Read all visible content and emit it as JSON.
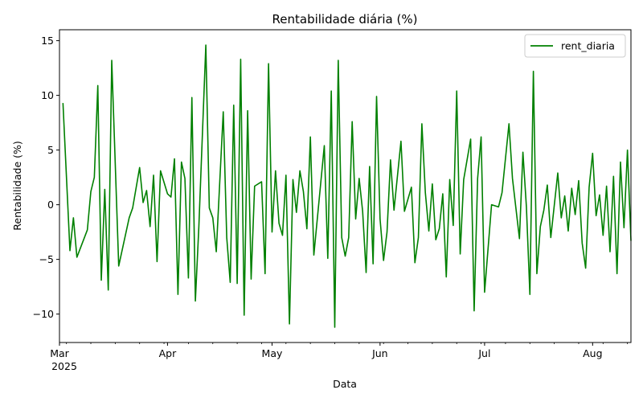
{
  "chart_data": {
    "type": "line",
    "title": "Rentabilidade diária (%)",
    "xlabel": "Data",
    "ylabel": "Rentabilidade (%)",
    "x_start": "2025-03-01",
    "x_end": "2025-08-12",
    "ylim": [
      -12.6,
      16.0
    ],
    "grid": false,
    "legend_position": "top-right",
    "x_ticks": [
      {
        "date": "2025-03-01",
        "label": "Mar",
        "sublabel": "2025"
      },
      {
        "date": "2025-04-01",
        "label": "Apr",
        "sublabel": ""
      },
      {
        "date": "2025-05-01",
        "label": "May",
        "sublabel": ""
      },
      {
        "date": "2025-06-01",
        "label": "Jun",
        "sublabel": ""
      },
      {
        "date": "2025-07-01",
        "label": "Jul",
        "sublabel": ""
      },
      {
        "date": "2025-08-01",
        "label": "Aug",
        "sublabel": ""
      }
    ],
    "y_ticks": [
      {
        "value": 15,
        "label": "15"
      },
      {
        "value": 10,
        "label": "10"
      },
      {
        "value": 5,
        "label": "5"
      },
      {
        "value": 0,
        "label": "0"
      },
      {
        "value": -5,
        "label": "−5"
      },
      {
        "value": -10,
        "label": "−10"
      }
    ],
    "series": [
      {
        "name": "rent_diaria",
        "color": "#008000",
        "x": [
          "2025-03-02",
          "2025-03-04",
          "2025-03-05",
          "2025-03-06",
          "2025-03-09",
          "2025-03-10",
          "2025-03-11",
          "2025-03-12",
          "2025-03-13",
          "2025-03-14",
          "2025-03-15",
          "2025-03-16",
          "2025-03-18",
          "2025-03-21",
          "2025-03-22",
          "2025-03-24",
          "2025-03-25",
          "2025-03-26",
          "2025-03-27",
          "2025-03-28",
          "2025-03-29",
          "2025-03-30",
          "2025-04-01",
          "2025-04-02",
          "2025-04-03",
          "2025-04-04",
          "2025-04-05",
          "2025-04-06",
          "2025-04-07",
          "2025-04-08",
          "2025-04-09",
          "2025-04-10",
          "2025-04-12",
          "2025-04-13",
          "2025-04-14",
          "2025-04-15",
          "2025-04-17",
          "2025-04-18",
          "2025-04-19",
          "2025-04-20",
          "2025-04-21",
          "2025-04-22",
          "2025-04-23",
          "2025-04-24",
          "2025-04-25",
          "2025-04-26",
          "2025-04-28",
          "2025-04-29",
          "2025-04-30",
          "2025-05-01",
          "2025-05-02",
          "2025-05-03",
          "2025-05-04",
          "2025-05-05",
          "2025-05-06",
          "2025-05-07",
          "2025-05-08",
          "2025-05-09",
          "2025-05-10",
          "2025-05-11",
          "2025-05-12",
          "2025-05-13",
          "2025-05-16",
          "2025-05-17",
          "2025-05-18",
          "2025-05-19",
          "2025-05-20",
          "2025-05-21",
          "2025-05-22",
          "2025-05-23",
          "2025-05-24",
          "2025-05-25",
          "2025-05-26",
          "2025-05-27",
          "2025-05-28",
          "2025-05-29",
          "2025-05-30",
          "2025-05-31",
          "2025-06-01",
          "2025-06-02",
          "2025-06-03",
          "2025-06-04",
          "2025-06-05",
          "2025-06-07",
          "2025-06-08",
          "2025-06-10",
          "2025-06-11",
          "2025-06-12",
          "2025-06-13",
          "2025-06-14",
          "2025-06-15",
          "2025-06-16",
          "2025-06-17",
          "2025-06-18",
          "2025-06-19",
          "2025-06-20",
          "2025-06-21",
          "2025-06-22",
          "2025-06-23",
          "2025-06-24",
          "2025-06-25",
          "2025-06-27",
          "2025-06-28",
          "2025-06-29",
          "2025-06-30",
          "2025-07-01",
          "2025-07-03",
          "2025-07-05",
          "2025-07-06",
          "2025-07-08",
          "2025-07-09",
          "2025-07-11",
          "2025-07-12",
          "2025-07-13",
          "2025-07-14",
          "2025-07-15",
          "2025-07-16",
          "2025-07-17",
          "2025-07-18",
          "2025-07-19",
          "2025-07-20",
          "2025-07-22",
          "2025-07-23",
          "2025-07-24",
          "2025-07-25",
          "2025-07-26",
          "2025-07-27",
          "2025-07-28",
          "2025-07-29",
          "2025-07-30",
          "2025-07-31",
          "2025-08-01",
          "2025-08-02",
          "2025-08-03",
          "2025-08-04",
          "2025-08-05",
          "2025-08-06",
          "2025-08-07",
          "2025-08-08",
          "2025-08-09",
          "2025-08-10",
          "2025-08-11",
          "2025-08-12"
        ],
        "y": [
          9.3,
          -4.2,
          -1.2,
          -4.8,
          -2.3,
          1.2,
          2.5,
          10.9,
          -6.9,
          1.4,
          -7.8,
          13.2,
          -5.6,
          -1.2,
          -0.3,
          3.4,
          0.2,
          1.3,
          -2.0,
          2.7,
          -5.2,
          3.1,
          1.0,
          0.7,
          4.2,
          -8.2,
          3.9,
          2.4,
          -6.7,
          9.8,
          -8.8,
          -2.0,
          14.6,
          -0.3,
          -1.2,
          -4.3,
          8.5,
          -3.0,
          -7.1,
          9.1,
          -7.2,
          13.3,
          -10.1,
          8.6,
          -6.8,
          1.7,
          2.1,
          -6.3,
          12.9,
          -2.5,
          3.1,
          -1.7,
          -2.8,
          2.7,
          -10.9,
          2.3,
          -0.7,
          3.1,
          1.2,
          -2.2,
          6.2,
          -4.6,
          5.4,
          -4.9,
          10.4,
          -11.2,
          13.2,
          -3.0,
          -4.7,
          -3.0,
          7.6,
          -1.3,
          2.4,
          -0.6,
          -6.2,
          3.5,
          -5.4,
          9.9,
          -1.3,
          -5.1,
          -2.5,
          4.1,
          -0.5,
          5.8,
          -0.6,
          1.6,
          -5.3,
          -3.0,
          7.4,
          1.1,
          -2.4,
          1.9,
          -3.2,
          -2.2,
          1.0,
          -6.6,
          2.3,
          -1.9,
          10.4,
          -4.5,
          2.3,
          6.0,
          -9.7,
          2.4,
          6.2,
          -8.0,
          0.0,
          -0.2,
          1.1,
          7.4,
          2.4,
          -3.1,
          4.8,
          -0.2,
          -8.2,
          12.2,
          -6.3,
          -2.0,
          -0.5,
          1.8,
          -3.0,
          2.9,
          -1.2,
          0.8,
          -2.4,
          1.5,
          -0.9,
          2.2,
          -3.5,
          -5.8,
          1.6,
          4.7,
          -1.0,
          0.9,
          -2.8,
          1.7,
          -4.3,
          2.6,
          -6.3,
          3.9,
          -2.1,
          5.0,
          -3.3
        ]
      }
    ]
  }
}
